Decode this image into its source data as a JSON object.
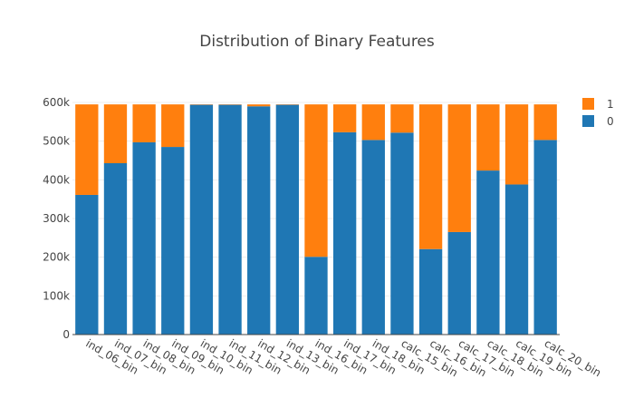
{
  "chart_data": {
    "type": "bar",
    "stacked": true,
    "title": "Distribution of Binary Features",
    "xlabel": "",
    "ylabel": "",
    "ylim": [
      0,
      600000
    ],
    "y_ticks": [
      0,
      100000,
      200000,
      300000,
      400000,
      500000,
      600000
    ],
    "y_tick_labels": [
      "0",
      "100k",
      "200k",
      "300k",
      "400k",
      "500k",
      "600k"
    ],
    "grid": true,
    "legend_position": "top-right",
    "categories": [
      "ind_06_bin",
      "ind_07_bin",
      "ind_08_bin",
      "ind_09_bin",
      "ind_10_bin",
      "ind_11_bin",
      "ind_12_bin",
      "ind_13_bin",
      "ind_16_bin",
      "ind_17_bin",
      "ind_18_bin",
      "calc_15_bin",
      "calc_16_bin",
      "calc_17_bin",
      "calc_18_bin",
      "calc_19_bin",
      "calc_20_bin"
    ],
    "series": [
      {
        "name": "0",
        "color": "#1f77b4",
        "values": [
          361000,
          443000,
          497000,
          485000,
          594000,
          594000,
          590000,
          594000,
          201000,
          523000,
          503000,
          522000,
          221000,
          265000,
          424000,
          388000,
          503000
        ]
      },
      {
        "name": "1",
        "color": "#ff7f0e",
        "values": [
          234000,
          152000,
          98000,
          110000,
          1000,
          1000,
          5000,
          1000,
          394000,
          72000,
          92000,
          73000,
          374000,
          330000,
          171000,
          207000,
          92000
        ]
      }
    ],
    "legend": [
      {
        "name": "1",
        "color": "#ff7f0e"
      },
      {
        "name": "0",
        "color": "#1f77b4"
      }
    ]
  }
}
